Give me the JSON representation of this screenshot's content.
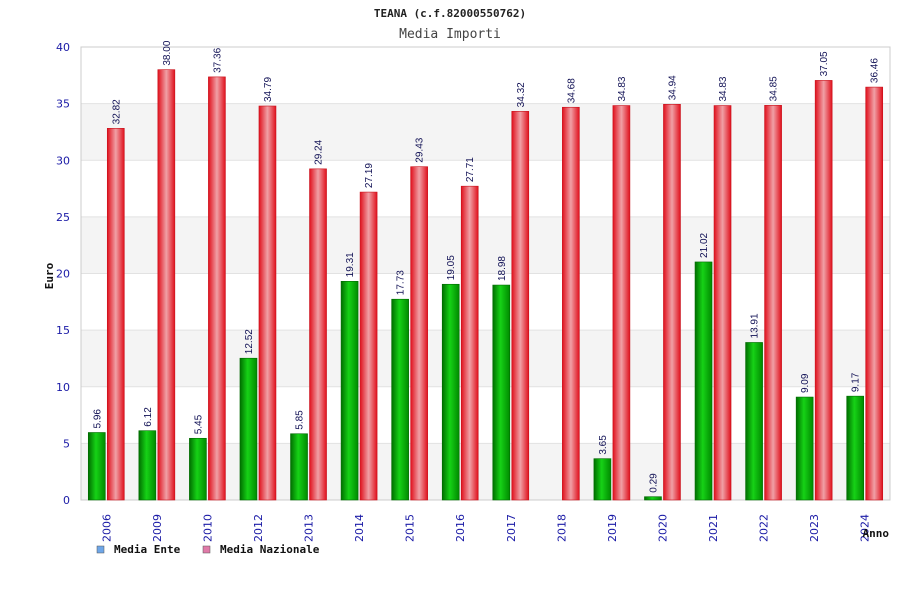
{
  "chart_data": {
    "type": "bar",
    "title": "TEANA (c.f.82000550762)",
    "subtitle": "Media Importi",
    "xlabel": "Anno",
    "ylabel": "Euro",
    "ylim": [
      0,
      40
    ],
    "yticks": [
      0,
      5,
      10,
      15,
      20,
      25,
      30,
      35,
      40
    ],
    "grid": true,
    "legend_position": "bottom-left",
    "categories": [
      "2006",
      "2009",
      "2010",
      "2012",
      "2013",
      "2014",
      "2015",
      "2016",
      "2017",
      "2018",
      "2019",
      "2020",
      "2021",
      "2022",
      "2023",
      "2024"
    ],
    "series": [
      {
        "name": "Media Ente",
        "color": "#00b000",
        "legend_color": "#6ea6e8",
        "values": [
          5.96,
          6.12,
          5.45,
          12.52,
          5.85,
          19.31,
          17.73,
          19.05,
          18.98,
          null,
          3.65,
          0.29,
          21.02,
          13.91,
          9.09,
          9.17
        ],
        "labels": [
          "5.96",
          "6.12",
          "5.45",
          "12.52",
          "5.85",
          "19.31",
          "17.73",
          "19.05",
          "18.98",
          "",
          "3.65",
          "0.29",
          "21.02",
          "13.91",
          "9.09",
          "9.17"
        ]
      },
      {
        "name": "Media Nazionale",
        "color": "#e8202a",
        "legend_color": "#e07aa8",
        "values": [
          32.82,
          38.0,
          37.36,
          34.79,
          29.24,
          27.19,
          29.43,
          27.71,
          34.32,
          34.68,
          34.83,
          34.94,
          34.83,
          34.85,
          37.05,
          36.46
        ],
        "labels": [
          "32.82",
          "38.00",
          "37.36",
          "34.79",
          "29.24",
          "27.19",
          "29.43",
          "27.71",
          "34.32",
          "34.68",
          "34.83",
          "34.94",
          "34.83",
          "34.85",
          "37.05",
          "36.46"
        ]
      }
    ]
  }
}
